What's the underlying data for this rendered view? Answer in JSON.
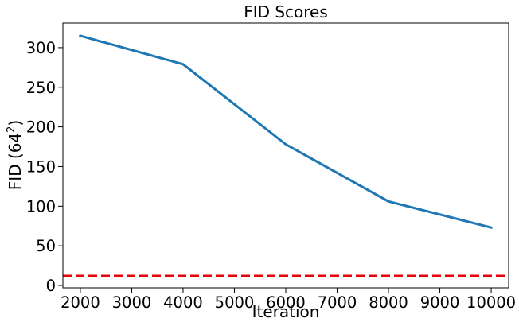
{
  "chart_data": {
    "type": "line",
    "title": "FID Scores",
    "xlabel": "Iteration",
    "ylabel_base": "FID (64",
    "ylabel_sup": "2",
    "ylabel_end": ")",
    "xlim": [
      1660,
      10340
    ],
    "ylim": [
      -3,
      331
    ],
    "xticks": [
      2000,
      3000,
      4000,
      5000,
      6000,
      7000,
      8000,
      9000,
      10000
    ],
    "yticks": [
      0,
      50,
      100,
      150,
      200,
      250,
      300
    ],
    "grid": false,
    "series": [
      {
        "color": "#1f77b4",
        "style": "solid",
        "x": [
          2000,
          4000,
          6000,
          8000,
          10000
        ],
        "y": [
          315,
          279,
          178,
          106,
          73
        ]
      }
    ],
    "hlines": [
      {
        "y": 12,
        "color": "#e8000b",
        "style": "dashed"
      }
    ]
  }
}
